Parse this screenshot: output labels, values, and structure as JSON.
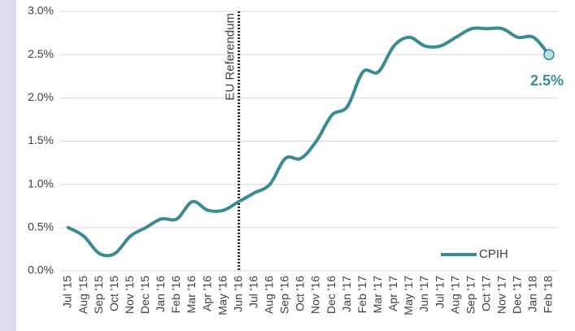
{
  "chart_data": {
    "type": "line",
    "categories": [
      "Jul '15",
      "Aug '15",
      "Sep '15",
      "Oct '15",
      "Nov '15",
      "Dec '15",
      "Jan '16",
      "Feb '16",
      "Mar '16",
      "Apr '16",
      "May '16",
      "Jun '16",
      "Jul '16",
      "Aug '16",
      "Sep '16",
      "Oct '16",
      "Nov '16",
      "Dec '16",
      "Jan '17",
      "Feb '17",
      "Mar '17",
      "Apr '17",
      "May '17",
      "Jun '17",
      "Jul '17",
      "Aug '17",
      "Sep '17",
      "Oct '17",
      "Nov '17",
      "Dec '17",
      "Jan '18",
      "Feb '18"
    ],
    "series": [
      {
        "name": "CPIH",
        "color": "#3a8c93",
        "values": [
          0.5,
          0.4,
          0.2,
          0.2,
          0.4,
          0.5,
          0.6,
          0.6,
          0.8,
          0.7,
          0.7,
          0.8,
          0.9,
          1.0,
          1.3,
          1.3,
          1.5,
          1.8,
          1.9,
          2.3,
          2.3,
          2.6,
          2.7,
          2.6,
          2.6,
          2.7,
          2.8,
          2.8,
          2.8,
          2.7,
          2.7,
          2.5
        ],
        "value_labels": [
          null,
          null,
          null,
          null,
          null,
          null,
          null,
          null,
          null,
          null,
          null,
          null,
          null,
          null,
          null,
          null,
          null,
          null,
          null,
          null,
          null,
          null,
          null,
          null,
          null,
          null,
          null,
          null,
          null,
          null,
          null,
          "2.5%"
        ]
      }
    ],
    "ylim": [
      0,
      3
    ],
    "yticks": [
      {
        "value": 0,
        "label": "0.0%"
      },
      {
        "value": 0.5,
        "label": "0.5%"
      },
      {
        "value": 1,
        "label": "1.0%"
      },
      {
        "value": 1.5,
        "label": "1.5%"
      },
      {
        "value": 2,
        "label": "2.0%"
      },
      {
        "value": 2.5,
        "label": "2.5%"
      },
      {
        "value": 3,
        "label": "3.0%"
      }
    ],
    "grid": true,
    "legend": "lower right",
    "annotations": [
      {
        "text": "EU Referendum",
        "at": "Jun '16"
      }
    ]
  }
}
